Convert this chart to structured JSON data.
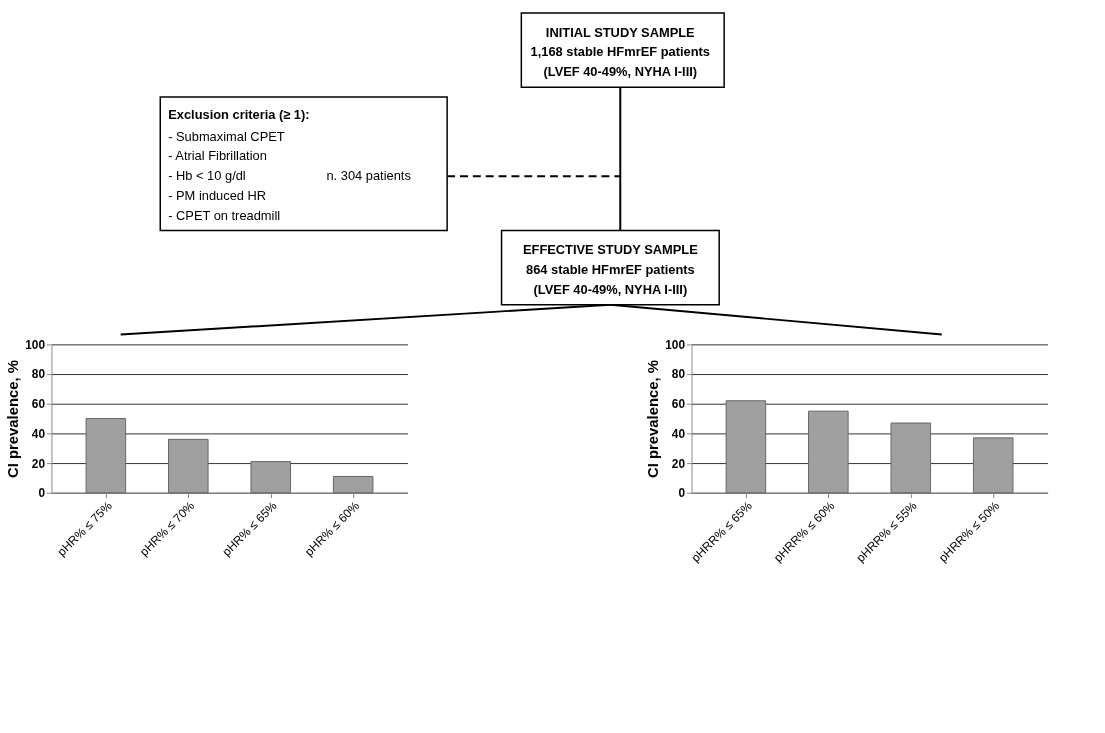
{
  "chart_data": [
    {
      "type": "other",
      "annotations": [
        "INITIAL STUDY SAMPLE",
        "1,168 stable HFmrEF patients",
        "(LVEF 40-49%, NYHA I-III)",
        "Exclusion criteria (≥ 1):",
        "-   Submaximal CPET",
        "-   Atrial Fibrillation",
        "-   Hb < 10 g/dl",
        "-   PM induced HR",
        "-   CPET on treadmill",
        "n. 304 patients",
        "EFFECTIVE STUDY SAMPLE",
        "864 stable HFmrEF patients",
        "(LVEF 40-49%, NYHA I-III)"
      ]
    },
    {
      "type": "bar",
      "categories": [
        "pHR% ≤ 75%",
        "pHR% ≤ 70%",
        "pHR% ≤ 65%",
        "pHR% ≤ 60%"
      ],
      "values": [
        50,
        36,
        21,
        11
      ],
      "color": "#a0a0a0",
      "ylabel": "CI prevalence, %",
      "ylim": [
        0,
        100
      ],
      "yticks": [
        0,
        20,
        40,
        60,
        80,
        100
      ],
      "grid": "y"
    },
    {
      "type": "bar",
      "categories": [
        "pHRR% ≤ 65%",
        "pHRR% ≤ 60%",
        "pHRR% ≤ 55%",
        "pHRR% ≤ 50%"
      ],
      "values": [
        62,
        55,
        47,
        37
      ],
      "color": "#a0a0a0",
      "ylabel": "CI prevalence, %",
      "ylim": [
        0,
        100
      ],
      "yticks": [
        0,
        20,
        40,
        60,
        80,
        100
      ],
      "grid": "y"
    }
  ]
}
